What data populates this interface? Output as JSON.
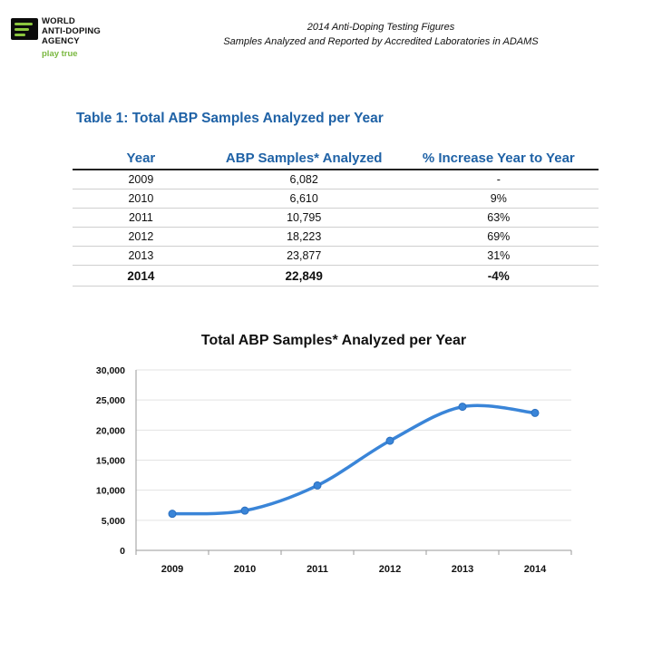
{
  "header": {
    "org_lines": [
      "WORLD",
      "ANTI-DOPING",
      "AGENCY"
    ],
    "org_tagline": "play true",
    "title": "2014 Anti-Doping Testing Figures",
    "subtitle": "Samples Analyzed and Reported by Accredited Laboratories in ADAMS"
  },
  "table": {
    "title": "Table 1: Total ABP Samples Analyzed per Year",
    "columns": [
      "Year",
      "ABP Samples* Analyzed",
      "% Increase Year to Year"
    ],
    "rows": [
      [
        "2009",
        "6,082",
        "-"
      ],
      [
        "2010",
        "6,610",
        "9%"
      ],
      [
        "2011",
        "10,795",
        "63%"
      ],
      [
        "2012",
        "18,223",
        "69%"
      ],
      [
        "2013",
        "23,877",
        "31%"
      ],
      [
        "2014",
        "22,849",
        "-4%"
      ]
    ]
  },
  "colors": {
    "accent_blue": "#1f62a6",
    "line_blue": "#3a85d8",
    "logo_green": "#8cc63f"
  },
  "chart_data": {
    "type": "line",
    "title": "Total ABP Samples* Analyzed per Year",
    "categories": [
      "2009",
      "2010",
      "2011",
      "2012",
      "2013",
      "2014"
    ],
    "series": [
      {
        "values": [
          6082,
          6610,
          10795,
          18223,
          23877,
          22849
        ]
      }
    ],
    "ylim": [
      0,
      30000
    ],
    "yticks": [
      0,
      5000,
      10000,
      15000,
      20000,
      25000,
      30000
    ],
    "ytick_labels": [
      "0",
      "5,000",
      "10,000",
      "15,000",
      "20,000",
      "25,000",
      "30,000"
    ],
    "grid": true,
    "legend": "none"
  }
}
